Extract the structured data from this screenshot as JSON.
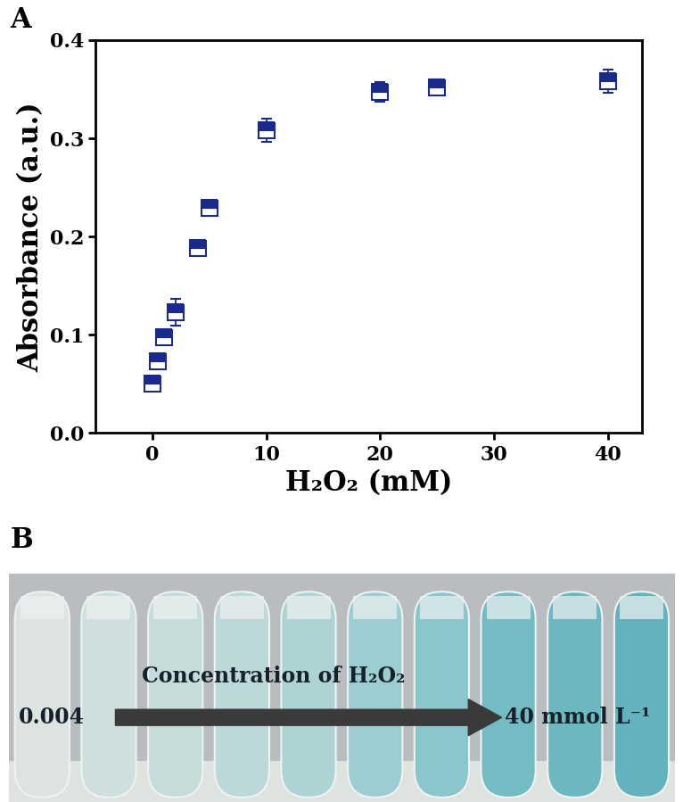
{
  "chart_data": {
    "type": "scatter",
    "panel_label": "A",
    "x_label": "H₂O₂ (mM)",
    "y_label": "Absorbance (a.u.)",
    "x": [
      0.004,
      0.5,
      1,
      2,
      4,
      5,
      10,
      20,
      25,
      40
    ],
    "values": [
      0.05,
      0.073,
      0.098,
      0.123,
      0.188,
      0.229,
      0.308,
      0.347,
      0.352,
      0.358
    ],
    "errors": [
      0.005,
      0.005,
      0.006,
      0.014,
      0.008,
      0.006,
      0.012,
      0.01,
      0.007,
      0.012
    ],
    "color": "#1a2a8c",
    "marker": "square",
    "xlim": [
      -5,
      43
    ],
    "xticks": [
      0,
      10,
      20,
      30,
      40
    ],
    "ylim": [
      0,
      0.4
    ],
    "yticks": [
      {
        "value": 0,
        "label": "0.0"
      },
      0.1,
      0.2,
      0.3,
      0.4
    ],
    "grid": false
  },
  "photo": {
    "panel_label": "B",
    "caption": "Concentration of H₂O₂",
    "start_label": "0.004",
    "end_label": "40 mmol L⁻¹",
    "colors": [
      "#dde3e1",
      "#cfdfdd",
      "#c6dcdb",
      "#bcd8d8",
      "#add3d4",
      "#9ccdd0",
      "#8ac6cb",
      "#74bcc4",
      "#6cb8c1",
      "#62b3bd"
    ]
  }
}
